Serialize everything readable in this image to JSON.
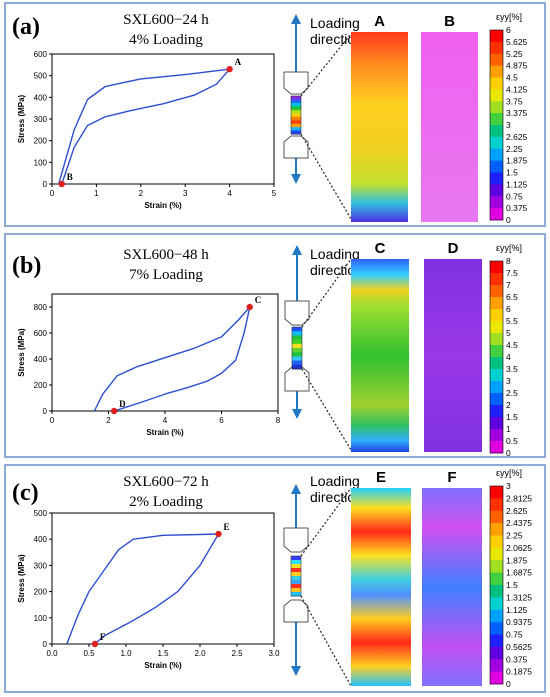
{
  "panels": [
    {
      "label": "(a)",
      "sample": "SXL600−24 h",
      "loading": "4% Loading",
      "direction_title": [
        "Loading",
        "direction"
      ],
      "map_labels": [
        "A",
        "B"
      ],
      "colorbar_title": "εyy[%]",
      "colorbar_ticks": [
        "6",
        "5.625",
        "5.25",
        "4.875",
        "4.5",
        "4.125",
        "3.75",
        "3.375",
        "3",
        "2.625",
        "2.25",
        "1.875",
        "1.5",
        "1.125",
        "0.75",
        "0.375",
        "0"
      ]
    },
    {
      "label": "(b)",
      "sample": "SXL600−48 h",
      "loading": "7% Loading",
      "direction_title": [
        "Loading",
        "direction"
      ],
      "map_labels": [
        "C",
        "D"
      ],
      "colorbar_title": "εyy[%]",
      "colorbar_ticks": [
        "8",
        "7.5",
        "7",
        "6.5",
        "6",
        "5.5",
        "5",
        "4.5",
        "4",
        "3.5",
        "3",
        "2.5",
        "2",
        "1.5",
        "1",
        "0.5",
        "0"
      ]
    },
    {
      "label": "(c)",
      "sample": "SXL600−72 h",
      "loading": "2% Loading",
      "direction_title": [
        "Loading",
        "direction"
      ],
      "map_labels": [
        "E",
        "F"
      ],
      "colorbar_title": "εyy[%]",
      "colorbar_ticks": [
        "3",
        "2.8125",
        "2.625",
        "2.4375",
        "2.25",
        "2.0625",
        "1.875",
        "1.6875",
        "1.5",
        "1.3125",
        "1.125",
        "0.9375",
        "0.75",
        "0.5625",
        "0.375",
        "0.1875",
        "0"
      ]
    }
  ],
  "chart_data": [
    {
      "type": "line",
      "title": "",
      "xlabel": "Strain (%)",
      "ylabel": "Stress (MPa)",
      "xlim": [
        0,
        5
      ],
      "ylim": [
        0,
        600
      ],
      "xticks": [
        "0",
        "1",
        "2",
        "3",
        "4",
        "5"
      ],
      "yticks": [
        "0",
        "100",
        "200",
        "300",
        "400",
        "500",
        "600"
      ],
      "grid": false,
      "series": [
        {
          "x": [
            0.15,
            0.5,
            0.8,
            1.2,
            2,
            3,
            3.6,
            4.0
          ],
          "y": [
            0,
            250,
            390,
            450,
            485,
            505,
            520,
            530
          ]
        },
        {
          "x": [
            4.0,
            3.7,
            3.2,
            2.5,
            1.8,
            1.2,
            0.8,
            0.5,
            0.22
          ],
          "y": [
            530,
            460,
            410,
            370,
            340,
            310,
            270,
            170,
            0
          ]
        }
      ],
      "points": [
        {
          "label": "A",
          "x": 4.0,
          "y": 530
        },
        {
          "label": "B",
          "x": 0.22,
          "y": 0
        }
      ]
    },
    {
      "type": "line",
      "title": "",
      "xlabel": "Strain (%)",
      "ylabel": "Stress (MPa)",
      "xlim": [
        0,
        8
      ],
      "ylim": [
        0,
        900
      ],
      "xticks": [
        "0",
        "2",
        "4",
        "6",
        "8"
      ],
      "yticks": [
        "0",
        "200",
        "400",
        "600",
        "800"
      ],
      "grid": false,
      "series": [
        {
          "x": [
            1.5,
            1.8,
            2.3,
            3,
            4,
            5,
            6,
            6.6,
            7.0
          ],
          "y": [
            0,
            130,
            270,
            340,
            410,
            480,
            570,
            700,
            800
          ]
        },
        {
          "x": [
            7.0,
            6.8,
            6.5,
            6.0,
            5.5,
            4.8,
            4,
            3.2,
            2.2
          ],
          "y": [
            800,
            600,
            390,
            290,
            230,
            180,
            130,
            70,
            0
          ]
        }
      ],
      "points": [
        {
          "label": "C",
          "x": 7.0,
          "y": 800
        },
        {
          "label": "D",
          "x": 2.2,
          "y": 0
        }
      ]
    },
    {
      "type": "line",
      "title": "",
      "xlabel": "Strain (%)",
      "ylabel": "Stress (MPa)",
      "xlim": [
        0,
        3
      ],
      "ylim": [
        0,
        500
      ],
      "xticks": [
        "0.0",
        "0.5",
        "1.0",
        "1.5",
        "2.0",
        "2.5",
        "3.0"
      ],
      "yticks": [
        "0",
        "100",
        "200",
        "300",
        "400",
        "500"
      ],
      "grid": false,
      "series": [
        {
          "x": [
            0.2,
            0.35,
            0.5,
            0.7,
            0.9,
            1.1,
            1.5,
            2.0,
            2.25
          ],
          "y": [
            0,
            110,
            200,
            280,
            360,
            400,
            415,
            418,
            420
          ]
        },
        {
          "x": [
            2.25,
            2.0,
            1.7,
            1.4,
            1.1,
            0.9,
            0.7,
            0.58
          ],
          "y": [
            420,
            300,
            200,
            140,
            90,
            60,
            30,
            0
          ]
        }
      ],
      "points": [
        {
          "label": "E",
          "x": 2.25,
          "y": 420
        },
        {
          "label": "F",
          "x": 0.58,
          "y": 0
        }
      ]
    }
  ],
  "colors": {
    "frame": "#8eaad8",
    "curve": "#2d4fd0",
    "marker": "#e02020",
    "arrow": "#1f77c4"
  }
}
